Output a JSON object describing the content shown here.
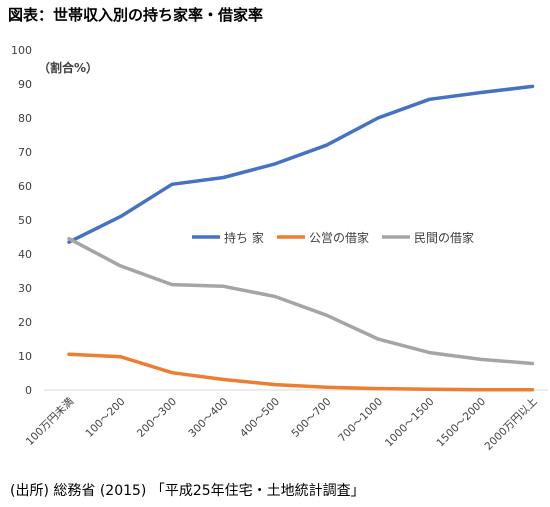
{
  "page_title": "図表：世帯収入別の持ち家率・借家率",
  "source_note": "(出所) 総務省 (2015) 「平成25年住宅・土地統計調査」",
  "chart_data": {
    "type": "line",
    "title": "",
    "xlabel": "",
    "ylabel": "（割合%）",
    "ylim": [
      0,
      100
    ],
    "yticks": [
      0,
      10,
      20,
      30,
      40,
      50,
      60,
      70,
      80,
      90,
      100
    ],
    "categories": [
      "100万円未満",
      "100～200",
      "200～300",
      "300～400",
      "400～500",
      "500～700",
      "700～1000",
      "1000～1500",
      "1500～2000",
      "2000万円以上"
    ],
    "grid": false,
    "legend_position": "center-right",
    "series": [
      {
        "name": "持ち 家",
        "color": "#4472C4",
        "values": [
          43.5,
          51,
          60.5,
          62.5,
          66.5,
          72,
          80,
          85.5,
          87.5,
          89.3
        ]
      },
      {
        "name": "公営の借家",
        "color": "#ED7D31",
        "values": [
          10.5,
          9.8,
          5.1,
          3.1,
          1.6,
          0.8,
          0.4,
          0.2,
          0.1,
          0.1
        ]
      },
      {
        "name": "民間の借家",
        "color": "#A5A5A5",
        "values": [
          44.5,
          36.5,
          31,
          30.5,
          27.5,
          22,
          15,
          11,
          9,
          7.8
        ]
      }
    ]
  }
}
